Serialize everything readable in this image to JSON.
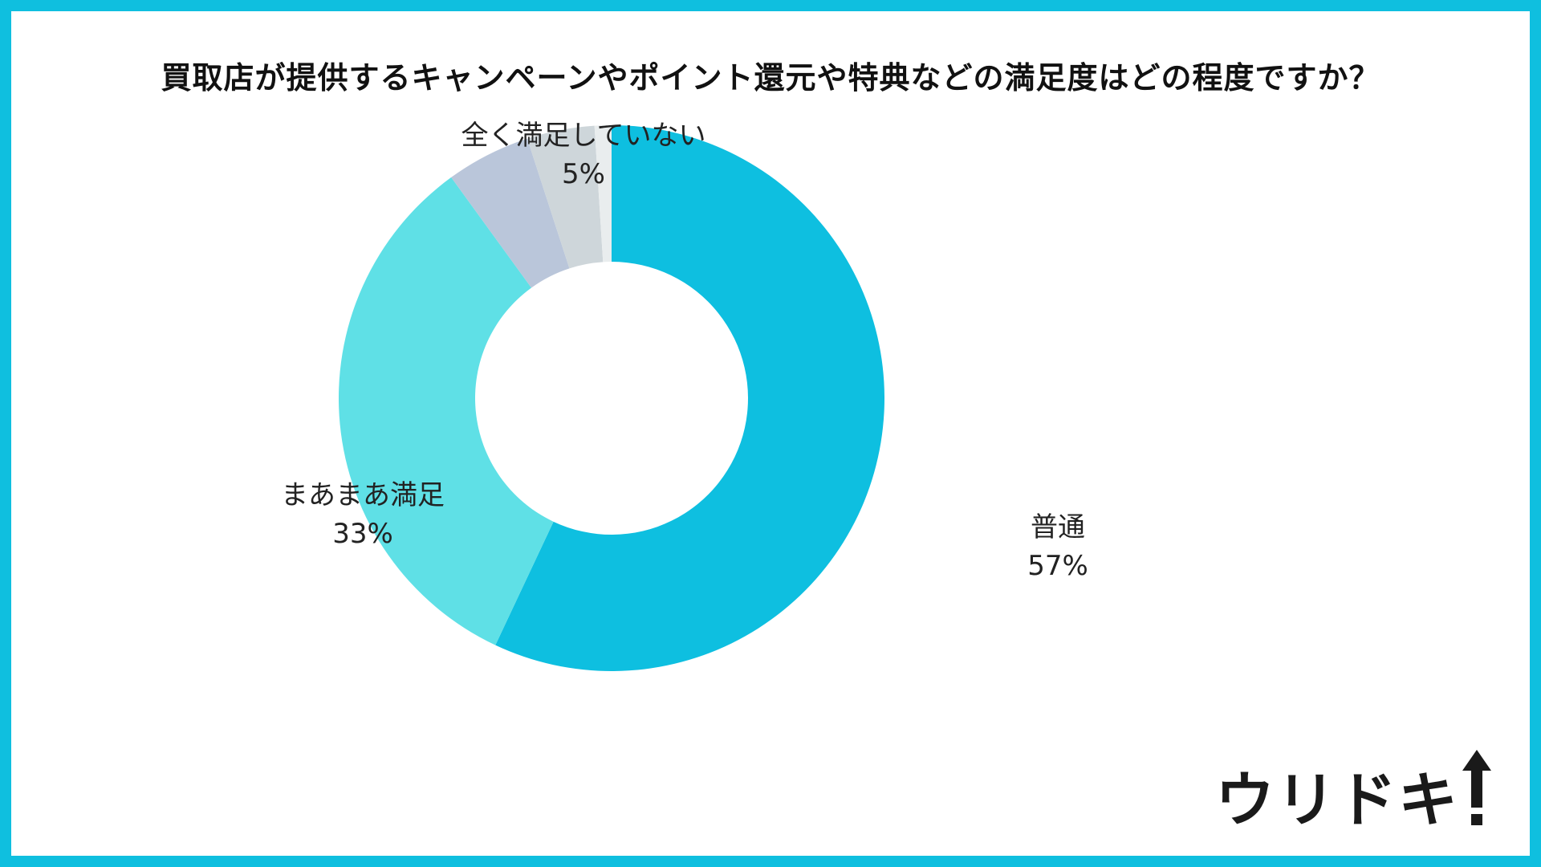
{
  "title": "買取店が提供するキャンペーンやポイント還元や特典などの満足度はどの程度ですか？",
  "logo_text": "ウリドキ",
  "colors": {
    "border": "#0fbfdf",
    "background": "#ffffff"
  },
  "chart_data": {
    "type": "pie",
    "variant": "donut",
    "start": "top",
    "direction": "clockwise",
    "slices": [
      {
        "label": "普通",
        "value_label": "57%",
        "value": 57,
        "color": "#0ebfe0",
        "show_label": true
      },
      {
        "label": "まあまあ満足",
        "value_label": "33%",
        "value": 33,
        "color": "#5fe0e6",
        "show_label": true
      },
      {
        "label": "全く満足していない",
        "value_label": "5%",
        "value": 5,
        "color": "#bac6da",
        "show_label": true
      },
      {
        "label": "",
        "value_label": "",
        "value": 4,
        "color": "#ced6da",
        "show_label": false
      },
      {
        "label": "",
        "value_label": "",
        "value": 1,
        "color": "#e9edee",
        "show_label": false
      }
    ]
  }
}
